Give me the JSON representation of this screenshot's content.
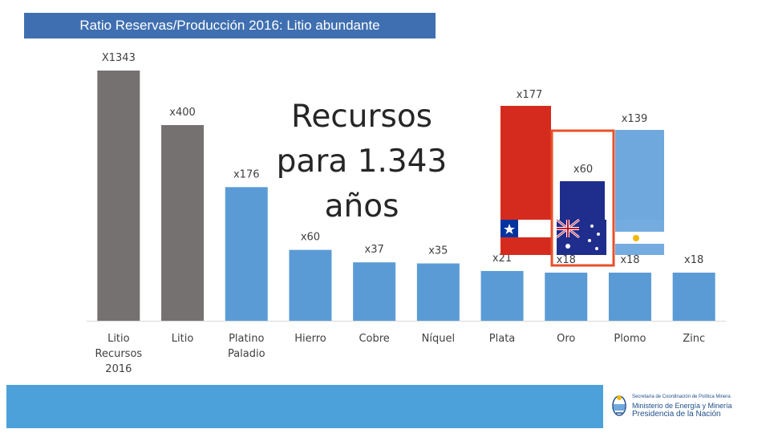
{
  "title": "Ratio Reservas/Producción 2016: Litio abundante",
  "callout": [
    "Recursos",
    "para 1.343",
    "años"
  ],
  "colors": {
    "gray": "#767171",
    "blue": "#5b9bd5",
    "chile_red": "#d52b1e",
    "australia_blue": "#1f2d8c",
    "argentina_blue": "#6fa8dc",
    "highlight_border": "#e8502a",
    "title_bg": "#3f6fb0",
    "footer_bg": "#4da1db"
  },
  "chart_data": {
    "type": "bar",
    "title": "Ratio Reservas/Producción 2016: Litio abundante",
    "xlabel": "",
    "ylabel": "",
    "categories": [
      [
        "Litio",
        "Recursos",
        "2016"
      ],
      [
        "Litio"
      ],
      [
        "Platino",
        "Paladio"
      ],
      [
        "Hierro"
      ],
      [
        "Cobre"
      ],
      [
        "Níquel"
      ],
      [
        "Plata"
      ],
      [
        "Oro"
      ],
      [
        "Plomo"
      ],
      [
        "Zinc"
      ]
    ],
    "values": [
      1343,
      400,
      176,
      60,
      37,
      35,
      21,
      18,
      18,
      18
    ],
    "labels": [
      "X1343",
      "x400",
      "x176",
      "x60",
      "x37",
      "x35",
      "x21",
      "x18",
      "x18",
      "x18"
    ],
    "bar_colors": [
      "#767171",
      "#767171",
      "#5b9bd5",
      "#5b9bd5",
      "#5b9bd5",
      "#5b9bd5",
      "#5b9bd5",
      "#5b9bd5",
      "#5b9bd5",
      "#5b9bd5"
    ],
    "lithium_by_country": [
      {
        "country": "Chile",
        "value": 177,
        "label": "x177",
        "flag": "chile-flag"
      },
      {
        "country": "Australia",
        "value": 60,
        "label": "x60",
        "flag": "australia-flag"
      },
      {
        "country": "Argentina",
        "value": 139,
        "label": "x139",
        "flag": "argentina-flag"
      }
    ]
  },
  "footer": {
    "line1": "Secretaría de Coordinación de Política Minera",
    "line2": "Ministerio de Energía y Minería",
    "line3": "Presidencia de la Nación"
  }
}
